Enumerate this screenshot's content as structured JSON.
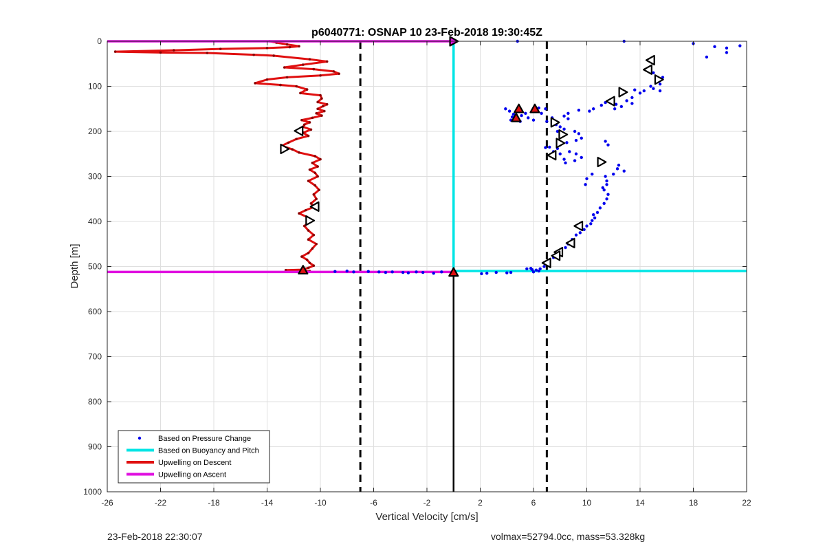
{
  "chart_data": {
    "type": "scatter",
    "title": "p6040771: OSNAP 10 23-Feb-2018 19:30:45Z",
    "xlabel": "Vertical Velocity [cm/s]",
    "ylabel": "Depth [m]",
    "xlim": [
      -26,
      22
    ],
    "ylim": [
      1000,
      0
    ],
    "y_reversed": true,
    "grid": true,
    "xticks": [
      -26,
      -22,
      -18,
      -14,
      -10,
      -6,
      -2,
      2,
      6,
      10,
      14,
      18,
      22
    ],
    "yticks": [
      0,
      100,
      200,
      300,
      400,
      500,
      600,
      700,
      800,
      900,
      1000
    ],
    "legend_position": "bottom-left",
    "legend": [
      {
        "label": "Based on Pressure Change",
        "color": "#0000ee",
        "style": "dot"
      },
      {
        "label": "Based on Buoyancy and Pitch",
        "color": "#00e5e5",
        "style": "line"
      },
      {
        "label": "Upwelling on Descent",
        "color": "#e01010",
        "style": "line"
      },
      {
        "label": "Upwelling on Ascent",
        "color": "#e010e0",
        "style": "line"
      }
    ],
    "reference_lines": {
      "dashed_x": [
        -7,
        7
      ],
      "solid_x_segment": {
        "x": 0,
        "y_from": 512,
        "y_to": 1000
      }
    },
    "series": {
      "pressure_change": {
        "color": "#0000ee",
        "points": [
          [
            4.8,
            0
          ],
          [
            12.8,
            0
          ],
          [
            18,
            5
          ],
          [
            19.6,
            12
          ],
          [
            21.5,
            10
          ],
          [
            20.5,
            15
          ],
          [
            20.5,
            25
          ],
          [
            19,
            35
          ],
          [
            15.0,
            70
          ],
          [
            15.5,
            95
          ],
          [
            15.7,
            80
          ],
          [
            14.8,
            100
          ],
          [
            15.0,
            105
          ],
          [
            14.3,
            110
          ],
          [
            15.5,
            110
          ],
          [
            14.0,
            115
          ],
          [
            13.6,
            108
          ],
          [
            13.4,
            125
          ],
          [
            13.0,
            132
          ],
          [
            13.4,
            138
          ],
          [
            12.2,
            140
          ],
          [
            12.6,
            145
          ],
          [
            12.1,
            150
          ],
          [
            11.8,
            130
          ],
          [
            11.4,
            136
          ],
          [
            11.1,
            142
          ],
          [
            10.5,
            150
          ],
          [
            10.2,
            155
          ],
          [
            9.4,
            153
          ],
          [
            8.6,
            160
          ],
          [
            8.3,
            166
          ],
          [
            8.6,
            172
          ],
          [
            7.4,
            170
          ],
          [
            7.0,
            178
          ],
          [
            7.7,
            185
          ],
          [
            8.0,
            190
          ],
          [
            8.3,
            195
          ],
          [
            7.8,
            200
          ],
          [
            9.1,
            200
          ],
          [
            9.4,
            205
          ],
          [
            9.6,
            215
          ],
          [
            9.2,
            220
          ],
          [
            8.5,
            225
          ],
          [
            8.0,
            230
          ],
          [
            7.8,
            238
          ],
          [
            7.2,
            235
          ],
          [
            6.9,
            236
          ],
          [
            7.5,
            245
          ],
          [
            8.0,
            250
          ],
          [
            8.7,
            245
          ],
          [
            9.2,
            250
          ],
          [
            9.6,
            258
          ],
          [
            9.1,
            265
          ],
          [
            8.4,
            270
          ],
          [
            8.3,
            262
          ],
          [
            11.4,
            222
          ],
          [
            11.6,
            230
          ],
          [
            12.4,
            275
          ],
          [
            12.3,
            283
          ],
          [
            12.8,
            288
          ],
          [
            12.0,
            295
          ],
          [
            11.4,
            300
          ],
          [
            11.5,
            310
          ],
          [
            10.4,
            295
          ],
          [
            10.0,
            305
          ],
          [
            9.9,
            318
          ],
          [
            11.5,
            318
          ],
          [
            11.2,
            325
          ],
          [
            11.3,
            330
          ],
          [
            11.6,
            340
          ],
          [
            11.5,
            350
          ],
          [
            11.3,
            360
          ],
          [
            11.0,
            370
          ],
          [
            10.8,
            380
          ],
          [
            10.5,
            385
          ],
          [
            10.6,
            392
          ],
          [
            10.4,
            398
          ],
          [
            10.3,
            405
          ],
          [
            10.0,
            410
          ],
          [
            9.8,
            418
          ],
          [
            9.5,
            425
          ],
          [
            9.2,
            430
          ],
          [
            8.9,
            440
          ],
          [
            8.6,
            450
          ],
          [
            8.4,
            458
          ],
          [
            8.0,
            465
          ],
          [
            7.8,
            472
          ],
          [
            7.5,
            480
          ],
          [
            7.2,
            488
          ],
          [
            7.0,
            495
          ],
          [
            6.8,
            500
          ],
          [
            6.5,
            505
          ],
          [
            6.2,
            508
          ],
          [
            5.9,
            507
          ],
          [
            5.8,
            504
          ],
          [
            5.5,
            505
          ],
          [
            6.4,
            510
          ],
          [
            6.0,
            512
          ],
          [
            3.9,
            150
          ],
          [
            4.2,
            155
          ],
          [
            4.5,
            162
          ],
          [
            5.1,
            165
          ],
          [
            5.4,
            160
          ],
          [
            5.0,
            150
          ],
          [
            6.4,
            148
          ],
          [
            6.9,
            150
          ],
          [
            6.6,
            160
          ],
          [
            4.3,
            175
          ],
          [
            5.0,
            178
          ],
          [
            5.6,
            170
          ],
          [
            6.0,
            175
          ],
          [
            4.4,
            168
          ],
          [
            3.2,
            513
          ],
          [
            2.5,
            515
          ],
          [
            2.1,
            516
          ],
          [
            4.0,
            514
          ],
          [
            4.3,
            513
          ],
          [
            -0.9,
            512
          ],
          [
            -1.5,
            515
          ],
          [
            -2.3,
            513
          ],
          [
            -2.8,
            512
          ],
          [
            -3.4,
            514
          ],
          [
            -3.8,
            513
          ],
          [
            -4.6,
            512
          ],
          [
            -5.1,
            513
          ],
          [
            -5.6,
            512
          ],
          [
            -6.4,
            511
          ],
          [
            -7.5,
            512
          ],
          [
            -8.0,
            510
          ],
          [
            -8.9,
            511
          ]
        ]
      },
      "buoyancy_pitch": {
        "color": "#00e5e5",
        "points": [
          [
            0,
            0
          ],
          [
            0,
            510
          ],
          [
            22,
            510
          ]
        ]
      },
      "upwelling_descent": {
        "color": "#e01010",
        "points": [
          [
            -13.8,
            0
          ],
          [
            -13.3,
            3
          ],
          [
            -12.5,
            7
          ],
          [
            -11.6,
            11
          ],
          [
            -12.3,
            13
          ],
          [
            -14.0,
            15
          ],
          [
            -17.5,
            17
          ],
          [
            -21,
            20
          ],
          [
            -25.4,
            23
          ],
          [
            -22,
            25
          ],
          [
            -18.5,
            26
          ],
          [
            -15,
            30
          ],
          [
            -13.5,
            32
          ],
          [
            -10.8,
            40
          ],
          [
            -9.5,
            45
          ],
          [
            -11.3,
            52
          ],
          [
            -12.7,
            58
          ],
          [
            -10.5,
            62
          ],
          [
            -9.0,
            67
          ],
          [
            -8.6,
            72
          ],
          [
            -10.0,
            76
          ],
          [
            -12.5,
            80
          ],
          [
            -14.0,
            85
          ],
          [
            -14.9,
            93
          ],
          [
            -13.0,
            97
          ],
          [
            -11.8,
            100
          ],
          [
            -11.0,
            107
          ],
          [
            -11.5,
            115
          ],
          [
            -10.0,
            120
          ],
          [
            -9.9,
            127
          ],
          [
            -10.2,
            135
          ],
          [
            -9.5,
            140
          ],
          [
            -9.8,
            144
          ],
          [
            -10.2,
            150
          ],
          [
            -9.7,
            155
          ],
          [
            -10.3,
            160
          ],
          [
            -9.9,
            165
          ],
          [
            -10.6,
            170
          ],
          [
            -11.4,
            175
          ],
          [
            -10.8,
            180
          ],
          [
            -11.2,
            185
          ],
          [
            -11.3,
            190
          ],
          [
            -10.7,
            196
          ],
          [
            -11.3,
            203
          ],
          [
            -10.9,
            210
          ],
          [
            -11.8,
            217
          ],
          [
            -12.4,
            225
          ],
          [
            -12.9,
            232
          ],
          [
            -12.1,
            240
          ],
          [
            -11.6,
            247
          ],
          [
            -10.4,
            255
          ],
          [
            -10.0,
            262
          ],
          [
            -10.6,
            270
          ],
          [
            -10.2,
            278
          ],
          [
            -10.8,
            285
          ],
          [
            -10.4,
            292
          ],
          [
            -10.2,
            300
          ],
          [
            -10.9,
            310
          ],
          [
            -10.4,
            320
          ],
          [
            -10.1,
            330
          ],
          [
            -10.5,
            340
          ],
          [
            -10.3,
            350
          ],
          [
            -10.7,
            360
          ],
          [
            -10.5,
            368
          ],
          [
            -11.1,
            375
          ],
          [
            -11.6,
            382
          ],
          [
            -11.0,
            390
          ],
          [
            -10.8,
            400
          ],
          [
            -11.2,
            410
          ],
          [
            -10.9,
            420
          ],
          [
            -10.5,
            430
          ],
          [
            -10.9,
            440
          ],
          [
            -10.3,
            450
          ],
          [
            -10.6,
            460
          ],
          [
            -10.9,
            470
          ],
          [
            -11.4,
            478
          ],
          [
            -11.0,
            485
          ],
          [
            -10.8,
            492
          ],
          [
            -10.5,
            498
          ],
          [
            -10.9,
            503
          ],
          [
            -11.4,
            507
          ],
          [
            -12.6,
            508
          ],
          [
            -10.8,
            510
          ]
        ]
      },
      "upwelling_ascent": {
        "color": "#e010e0",
        "segments": [
          {
            "x": [
              -26,
              0
            ],
            "y": 0
          },
          {
            "x": [
              -26,
              0
            ],
            "y": 512
          }
        ]
      }
    },
    "markers": {
      "white_triangles": [
        {
          "x": 14.8,
          "y": 42,
          "dir": "left"
        },
        {
          "x": 14.6,
          "y": 63,
          "dir": "left"
        },
        {
          "x": 15.4,
          "y": 85,
          "dir": "right"
        },
        {
          "x": 12.7,
          "y": 113,
          "dir": "right"
        },
        {
          "x": 11.8,
          "y": 133,
          "dir": "left"
        },
        {
          "x": 7.6,
          "y": 180,
          "dir": "right"
        },
        {
          "x": 8.2,
          "y": 207,
          "dir": "right"
        },
        {
          "x": 8.0,
          "y": 226,
          "dir": "right"
        },
        {
          "x": 7.4,
          "y": 253,
          "dir": "left"
        },
        {
          "x": 11.1,
          "y": 268,
          "dir": "right"
        },
        {
          "x": 9.4,
          "y": 410,
          "dir": "left"
        },
        {
          "x": 8.8,
          "y": 448,
          "dir": "left"
        },
        {
          "x": 7.9,
          "y": 468,
          "dir": "left"
        },
        {
          "x": 7.7,
          "y": 476,
          "dir": "left"
        },
        {
          "x": 7.0,
          "y": 492,
          "dir": "left"
        },
        {
          "x": -11.6,
          "y": 199,
          "dir": "left"
        },
        {
          "x": -12.7,
          "y": 239,
          "dir": "right"
        },
        {
          "x": -10.4,
          "y": 367,
          "dir": "left"
        },
        {
          "x": -10.8,
          "y": 398,
          "dir": "right"
        }
      ],
      "red_triangles_up": [
        {
          "x": 4.9,
          "y": 150
        },
        {
          "x": 6.1,
          "y": 150
        },
        {
          "x": 4.7,
          "y": 170
        },
        {
          "x": -11.3,
          "y": 508
        },
        {
          "x": 0,
          "y": 513
        }
      ],
      "magenta_triangle_right": [
        {
          "x": 0,
          "y": 0
        }
      ]
    }
  },
  "footer": {
    "left": "23-Feb-2018 22:30:07",
    "right": "volmax=52794.0cc, mass=53.328kg"
  }
}
